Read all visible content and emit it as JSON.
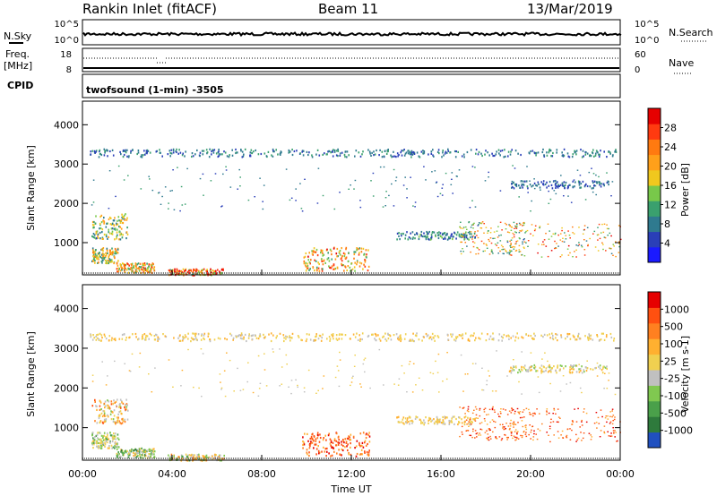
{
  "header": {
    "station": "Rankin Inlet (fitACF)",
    "beam": "Beam 11",
    "date": "13/Mar/2019"
  },
  "noise_panel": {
    "left_label": "N.Sky",
    "right_label": "N.Search",
    "left_ticks": [
      "10^5",
      "10^0"
    ],
    "right_ticks": [
      "10^5",
      "10^0"
    ]
  },
  "freq_panel": {
    "left_label_1": "Freq.",
    "left_label_2": "[MHz]",
    "left_ticks": [
      "18",
      "8"
    ],
    "right_label": "Nave",
    "right_ticks": [
      "60",
      "0"
    ],
    "cpid_label": "CPID",
    "cpid_text": "twofsound (1-min) -3505"
  },
  "colors": {
    "power_scale": [
      "#1a1aff",
      "#2a3fb8",
      "#2f7a8f",
      "#3aa06e",
      "#78c84a",
      "#f0c81e",
      "#ffa01a",
      "#ff7a10",
      "#ff3a10",
      "#e60000"
    ],
    "velocity_scale": [
      "#2050c0",
      "#2e7a3c",
      "#4aa04a",
      "#80c850",
      "#c0c0c0",
      "#f0d050",
      "#ffb030",
      "#ff8020",
      "#ff5010",
      "#e60000"
    ]
  },
  "chart_data": [
    {
      "type": "heatmap",
      "name": "power",
      "ylabel": "Slant Range [km]",
      "xlim": [
        0,
        24
      ],
      "ylim": [
        180,
        4600
      ],
      "yticks": [
        "1000",
        "2000",
        "3000",
        "4000"
      ],
      "colorbar_label": "Power [dB]",
      "colorbar_ticks": [
        "4",
        "8",
        "12",
        "16",
        "20",
        "24",
        "28"
      ],
      "colorbar_range": [
        0,
        32
      ],
      "regions": [
        {
          "t": [
            0.4,
            2.0
          ],
          "r": [
            1100,
            1750
          ],
          "v": [
            6,
            22
          ]
        },
        {
          "t": [
            0.4,
            1.6
          ],
          "r": [
            500,
            900
          ],
          "v": [
            8,
            24
          ]
        },
        {
          "t": [
            1.5,
            3.2
          ],
          "r": [
            250,
            500
          ],
          "v": [
            10,
            28
          ]
        },
        {
          "t": [
            3.8,
            6.3
          ],
          "r": [
            190,
            350
          ],
          "v": [
            12,
            32
          ]
        },
        {
          "t": [
            9.8,
            12.8
          ],
          "r": [
            300,
            900
          ],
          "v": [
            10,
            30
          ]
        },
        {
          "t": [
            14.0,
            17.5
          ],
          "r": [
            1100,
            1300
          ],
          "v": [
            4,
            14
          ]
        },
        {
          "t": [
            16.8,
            19.8
          ],
          "r": [
            700,
            1550
          ],
          "v": [
            6,
            28
          ]
        },
        {
          "t": [
            19.0,
            24.0
          ],
          "r": [
            650,
            1500
          ],
          "v": [
            8,
            30
          ]
        },
        {
          "t": [
            0.3,
            23.8
          ],
          "r": [
            3200,
            3400
          ],
          "v": [
            4,
            12
          ]
        },
        {
          "t": [
            19.0,
            23.5
          ],
          "r": [
            2400,
            2600
          ],
          "v": [
            4,
            10
          ]
        },
        {
          "t": [
            0.3,
            23.8
          ],
          "r": [
            1800,
            3000
          ],
          "v": [
            4,
            12
          ]
        }
      ]
    },
    {
      "type": "heatmap",
      "name": "velocity",
      "ylabel": "Slant Range [km]",
      "xlabel": "Time UT",
      "xlim": [
        0,
        24
      ],
      "ylim": [
        180,
        4600
      ],
      "yticks": [
        "1000",
        "2000",
        "3000",
        "4000"
      ],
      "xticks": [
        "00:00",
        "04:00",
        "08:00",
        "12:00",
        "16:00",
        "20:00",
        "00:00"
      ],
      "colorbar_label": "Velocity [m s-1]",
      "colorbar_ticks": [
        "1000",
        "500",
        "100",
        "25",
        "-25",
        "-100",
        "-500",
        "-1000"
      ],
      "regions": [
        {
          "t": [
            0.4,
            2.0
          ],
          "r": [
            1100,
            1750
          ],
          "v": [
            3,
            8
          ]
        },
        {
          "t": [
            0.4,
            1.6
          ],
          "r": [
            500,
            900
          ],
          "v": [
            2,
            6
          ]
        },
        {
          "t": [
            1.5,
            3.2
          ],
          "r": [
            250,
            500
          ],
          "v": [
            1,
            6
          ]
        },
        {
          "t": [
            3.8,
            6.3
          ],
          "r": [
            190,
            350
          ],
          "v": [
            2,
            7
          ]
        },
        {
          "t": [
            9.8,
            12.8
          ],
          "r": [
            300,
            900
          ],
          "v": [
            6,
            9
          ]
        },
        {
          "t": [
            14.0,
            17.5
          ],
          "r": [
            1100,
            1300
          ],
          "v": [
            4,
            6
          ]
        },
        {
          "t": [
            16.8,
            19.8
          ],
          "r": [
            700,
            1550
          ],
          "v": [
            6,
            9
          ]
        },
        {
          "t": [
            19.0,
            24.0
          ],
          "r": [
            650,
            1500
          ],
          "v": [
            6,
            9
          ]
        },
        {
          "t": [
            0.3,
            23.8
          ],
          "r": [
            3200,
            3400
          ],
          "v": [
            4,
            6
          ]
        },
        {
          "t": [
            19.0,
            23.5
          ],
          "r": [
            2400,
            2600
          ],
          "v": [
            3,
            6
          ]
        },
        {
          "t": [
            0.3,
            23.8
          ],
          "r": [
            1800,
            3000
          ],
          "v": [
            4,
            6
          ]
        }
      ]
    }
  ]
}
